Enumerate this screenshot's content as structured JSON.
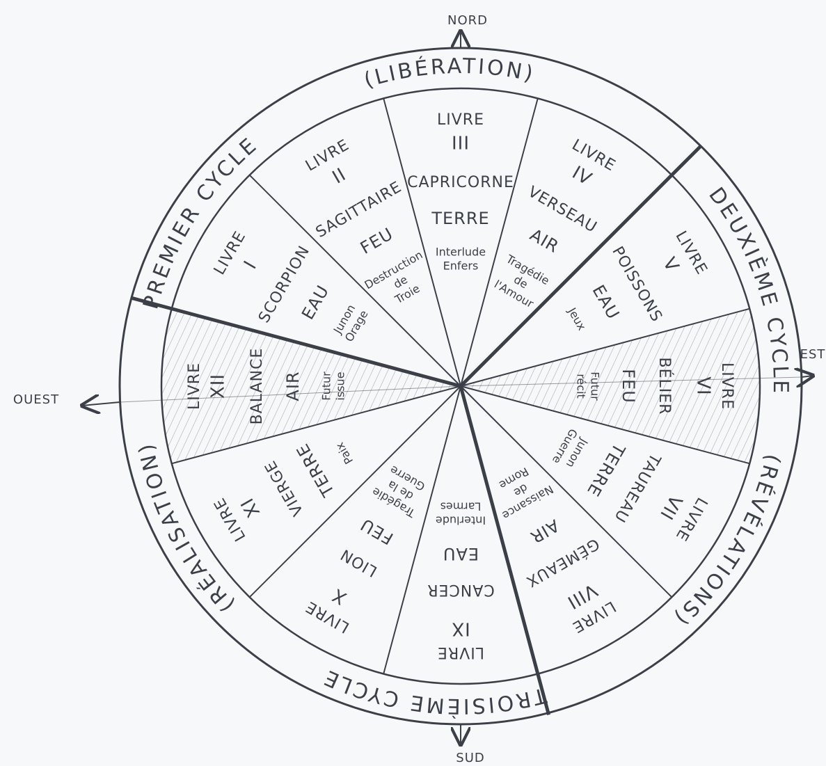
{
  "compass": {
    "north": "NORD",
    "south": "SUD",
    "east": "EST",
    "west": "OUEST"
  },
  "ring_labels": [
    "PREMIER CYCLE",
    "(LIBÉRATION)",
    "DEUXIÈME CYCLE",
    "(RÉVÉLATIONS)",
    "TROISIÈME CYCLE",
    "(RÉALISATION)"
  ],
  "sectors": [
    {
      "book": "LIVRE",
      "numeral": "I",
      "sign": "SCORPION",
      "element": "EAU",
      "theme": [
        "Junon",
        "Orage"
      ]
    },
    {
      "book": "LIVRE",
      "numeral": "II",
      "sign": "SAGITTAIRE",
      "element": "FEU",
      "theme": [
        "Destruction",
        "de",
        "Troie"
      ]
    },
    {
      "book": "LIVRE",
      "numeral": "III",
      "sign": "CAPRICORNE",
      "element": "TERRE",
      "theme": [
        "Interlude",
        "Enfers"
      ]
    },
    {
      "book": "LIVRE",
      "numeral": "IV",
      "sign": "VERSEAU",
      "element": "AIR",
      "theme": [
        "Tragédie",
        "de",
        "l'Amour"
      ]
    },
    {
      "book": "LIVRE",
      "numeral": "V",
      "sign": "POISSONS",
      "element": "EAU",
      "theme": [
        "Jeux"
      ]
    },
    {
      "book": "LIVRE",
      "numeral": "VI",
      "sign": "BÉLIER",
      "element": "FEU",
      "theme": [
        "Futur",
        "récit"
      ]
    },
    {
      "book": "LIVRE",
      "numeral": "VII",
      "sign": "TAUREAU",
      "element": "TERRE",
      "theme": [
        "Junon",
        "Guerre"
      ]
    },
    {
      "book": "LIVRE",
      "numeral": "VIII",
      "sign": "GÉMEAUX",
      "element": "AIR",
      "theme": [
        "Naissance",
        "de",
        "Rome"
      ]
    },
    {
      "book": "LIVRE",
      "numeral": "IX",
      "sign": "CANCER",
      "element": "EAU",
      "theme": [
        "Interlude",
        "Larmes"
      ]
    },
    {
      "book": "LIVRE",
      "numeral": "X",
      "sign": "LION",
      "element": "FEU",
      "theme": [
        "Tragédie",
        "de la",
        "Guerre"
      ]
    },
    {
      "book": "LIVRE",
      "numeral": "XI",
      "sign": "VIERGE",
      "element": "TERRE",
      "theme": [
        "Paix"
      ]
    },
    {
      "book": "LIVRE",
      "numeral": "XII",
      "sign": "BALANCE",
      "element": "AIR",
      "theme": [
        "Futur",
        "issue"
      ]
    }
  ]
}
